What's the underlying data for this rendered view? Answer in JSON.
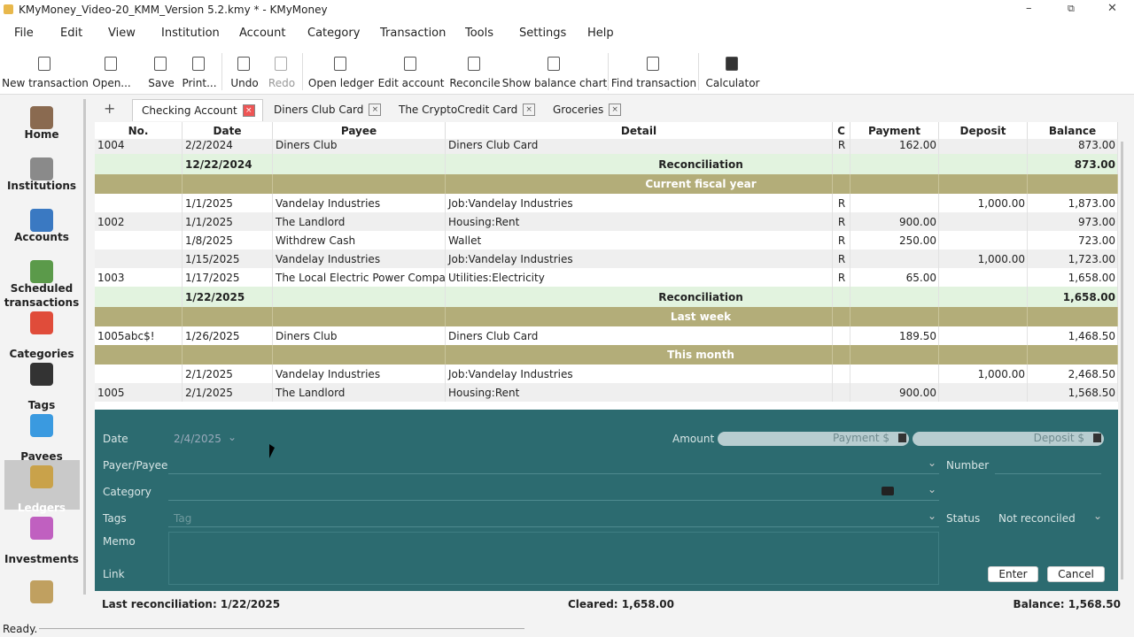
{
  "window": {
    "title": "KMyMoney_Video-20_KMM_Version 5.2.kmy * - KMyMoney"
  },
  "menu": [
    "File",
    "Edit",
    "View",
    "Institution",
    "Account",
    "Category",
    "Transaction",
    "Tools",
    "Settings",
    "Help"
  ],
  "toolbar": [
    "New transaction",
    "Open...",
    "Save",
    "Print...",
    "Undo",
    "Redo",
    "Open ledger",
    "Edit account",
    "Reconcile",
    "Show balance chart",
    "Find transaction",
    "Calculator"
  ],
  "sidebar": [
    {
      "label": "Home"
    },
    {
      "label": "Institutions"
    },
    {
      "label": "Accounts"
    },
    {
      "label": "Scheduled transactions"
    },
    {
      "label": "Categories"
    },
    {
      "label": "Tags"
    },
    {
      "label": "Payees"
    },
    {
      "label": "Ledgers",
      "selected": true
    },
    {
      "label": "Investments"
    }
  ],
  "tabs": [
    {
      "label": "Checking Account",
      "active": true
    },
    {
      "label": "Diners Club Card"
    },
    {
      "label": "The CryptoCredit Card"
    },
    {
      "label": "Groceries"
    }
  ],
  "ledger": {
    "columns": [
      "No.",
      "Date",
      "Payee",
      "Detail",
      "C",
      "Payment",
      "Deposit",
      "Balance"
    ],
    "rows": [
      {
        "type": "transaction",
        "cells": [
          "1004",
          "2/2/2024",
          "Diners Club",
          "Diners Club Card",
          "R",
          "162.00",
          null,
          "873.00"
        ]
      },
      {
        "type": "reconciliation",
        "date": "12/22/2024",
        "label": "Reconciliation",
        "balance": "873.00"
      },
      {
        "type": "group",
        "label": "Current fiscal year"
      },
      {
        "type": "transaction",
        "cells": [
          null,
          "1/1/2025",
          "Vandelay Industries",
          "Job:Vandelay Industries",
          "R",
          null,
          "1,000.00",
          "1,873.00"
        ]
      },
      {
        "type": "transaction",
        "cells": [
          "1002",
          "1/1/2025",
          "The Landlord",
          "Housing:Rent",
          "R",
          "900.00",
          null,
          "973.00"
        ]
      },
      {
        "type": "transaction",
        "cells": [
          null,
          "1/8/2025",
          "Withdrew Cash",
          "Wallet",
          "R",
          "250.00",
          null,
          "723.00"
        ]
      },
      {
        "type": "transaction",
        "cells": [
          null,
          "1/15/2025",
          "Vandelay Industries",
          "Job:Vandelay Industries",
          "R",
          null,
          "1,000.00",
          "1,723.00"
        ]
      },
      {
        "type": "transaction",
        "cells": [
          "1003",
          "1/17/2025",
          "The Local Electric Power Company",
          "Utilities:Electricity",
          "R",
          "65.00",
          null,
          "1,658.00"
        ]
      },
      {
        "type": "reconciliation",
        "date": "1/22/2025",
        "label": "Reconciliation",
        "balance": "1,658.00"
      },
      {
        "type": "group",
        "label": "Last week"
      },
      {
        "type": "transaction",
        "cells": [
          "1005abc$!",
          "1/26/2025",
          "Diners Club",
          "Diners Club Card",
          null,
          "189.50",
          null,
          "1,468.50"
        ]
      },
      {
        "type": "group",
        "label": "This month"
      },
      {
        "type": "transaction",
        "cells": [
          null,
          "2/1/2025",
          "Vandelay Industries",
          "Job:Vandelay Industries",
          null,
          null,
          "1,000.00",
          "2,468.50"
        ]
      },
      {
        "type": "transaction",
        "cells": [
          "1005",
          "2/1/2025",
          "The Landlord",
          "Housing:Rent",
          null,
          "900.00",
          null,
          "1,568.50"
        ]
      }
    ]
  },
  "form": {
    "date_label": "Date",
    "date": "2/4/2025",
    "amount_label": "Amount",
    "payment": "Payment $",
    "deposit": "Deposit $",
    "payee_label": "Payer/Payee",
    "number_label": "Number",
    "category_label": "Category",
    "tags_label": "Tags",
    "tags_placeholder": "Tag",
    "status_label": "Status",
    "status": "Not reconciled",
    "memo_label": "Memo",
    "link_label": "Link",
    "enter": "Enter",
    "cancel": "Cancel"
  },
  "footer": {
    "last_reconciliation": "Last reconciliation: 1/22/2025",
    "cleared": "Cleared: 1,658.00",
    "balance": "Balance: 1,568.50"
  },
  "statusbar": "Ready."
}
